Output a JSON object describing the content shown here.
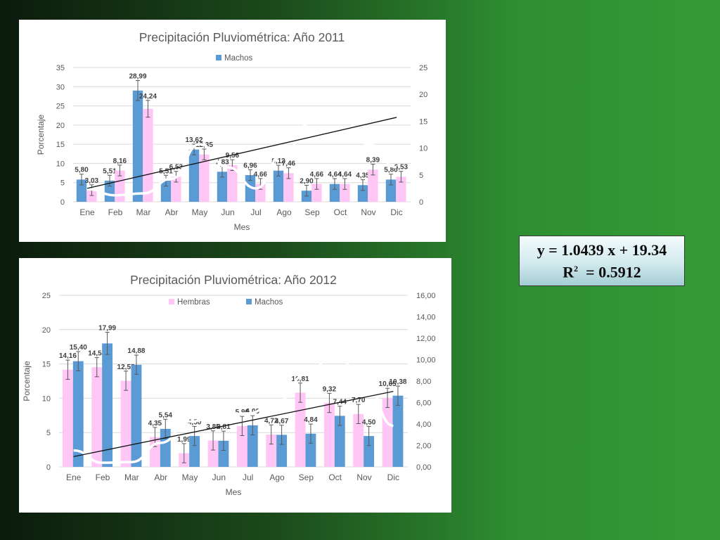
{
  "regression": {
    "equation": "y = 1.0439 x + 19.34",
    "r2_label": "R",
    "r2_sup": "2",
    "r2_value": "=  0.5912"
  },
  "colors": {
    "machos": "#5b9bd5",
    "hembras": "#ffc6f6",
    "trend": "#111111",
    "axis_text": "#595959",
    "grid": "#d9d9d9"
  },
  "chart_data": [
    {
      "type": "bar",
      "title": "Precipitación Pluviométrica: Año 2011",
      "xlabel": "Mes",
      "ylabel": "Porcentaje",
      "ylim": [
        0,
        35
      ],
      "yticks": [
        "0",
        "5",
        "10",
        "15",
        "20",
        "25",
        "30",
        "35"
      ],
      "y2lim": [
        0,
        25
      ],
      "y2ticks": [
        "0",
        "5",
        "10",
        "15",
        "20",
        "25"
      ],
      "grid": true,
      "legend_position": "top-center",
      "legend": [
        {
          "name": "Machos",
          "color": "#5b9bd5"
        }
      ],
      "categories": [
        "Ene",
        "Feb",
        "Mar",
        "Abr",
        "May",
        "Jun",
        "Jul",
        "Ago",
        "Sep",
        "Oct",
        "Nov",
        "Dic"
      ],
      "series": [
        {
          "values": [
            5.8,
            5.51,
            28.99,
            5.51,
            13.62,
            7.83,
            6.96,
            8.12,
            2.9,
            4.64,
            4.35,
            5.8
          ],
          "labels": [
            "5,80",
            "5,51",
            "28,99",
            "5,51",
            "13,62",
            "7,83",
            "6,96",
            "8,12",
            "2,90",
            "4,64",
            "4,35",
            "5,80"
          ],
          "color": "#5b9bd5"
        },
        {
          "values": [
            3.03,
            8.16,
            24.24,
            6.53,
            12.35,
            9.56,
            4.66,
            7.46,
            4.66,
            4.64,
            8.39,
            6.53
          ],
          "labels": [
            "3,03",
            "8,16",
            "24,24",
            "6,53",
            "12,35",
            "9,56",
            "4,66",
            "7,46",
            "4,66",
            "4,64",
            "8,39",
            "6,53"
          ],
          "color": "#ffc6f6"
        }
      ],
      "error_bars": true,
      "trendline": {
        "from": {
          "category": "Ene",
          "value": 3.5
        },
        "to": {
          "category": "Dic",
          "value": 22
        }
      },
      "white_curve": [
        3.3,
        1.7,
        2.2,
        6,
        15,
        9,
        3.5,
        13,
        21,
        23,
        15,
        9
      ]
    },
    {
      "type": "bar",
      "title": "Precipitación Pluviométrica: Año 2012",
      "xlabel": "Mes",
      "ylabel": "Porcentaje",
      "ylim": [
        0,
        25
      ],
      "yticks": [
        "0",
        "5",
        "10",
        "15",
        "20",
        "25"
      ],
      "y2lim": [
        0,
        16
      ],
      "y2ticks": [
        "0,00",
        "2,00",
        "4,00",
        "6,00",
        "8,00",
        "10,00",
        "12,00",
        "14,00",
        "16,00"
      ],
      "grid": true,
      "legend_position": "top-center",
      "legend": [
        {
          "name": "Hembras",
          "color": "#ffc6f6"
        },
        {
          "name": "Machos",
          "color": "#5b9bd5"
        }
      ],
      "categories": [
        "Ene",
        "Feb",
        "Mar",
        "Abr",
        "May",
        "Jun",
        "Jul",
        "Ago",
        "Sep",
        "Oct",
        "Nov",
        "Dic"
      ],
      "series": [
        {
          "name": "Hembras",
          "values": [
            14.16,
            14.53,
            12.55,
            4.35,
            1.99,
            3.85,
            5.96,
            4.72,
            10.81,
            9.32,
            7.7,
            10.05
          ],
          "labels": [
            "14,16",
            "14,53",
            "12,55",
            "4,35",
            "1,99",
            "3,85",
            "5,96",
            "4,72",
            "10,81",
            "9,32",
            "7,70",
            "10,05"
          ],
          "color": "#ffc6f6"
        },
        {
          "name": "Machos",
          "values": [
            15.4,
            17.99,
            14.88,
            5.54,
            4.5,
            3.81,
            6.06,
            4.67,
            4.84,
            7.44,
            4.5,
            10.38
          ],
          "labels": [
            "15,40",
            "17,99",
            "14,88",
            "5,54",
            "4,50",
            "3,81",
            "6,06",
            "4,67",
            "4,84",
            "7,44",
            "4,50",
            "10,38"
          ],
          "color": "#5b9bd5"
        }
      ],
      "error_bars": true,
      "trendline": {
        "from": {
          "category": "Ene",
          "value": 1.5
        },
        "to": {
          "category": "Dic",
          "value": 11
        }
      },
      "white_curve": [
        2.4,
        0.6,
        0.7,
        3.5,
        6.6,
        7.5,
        7.8,
        9.5,
        13.5,
        16.5,
        12.5,
        6
      ]
    }
  ]
}
